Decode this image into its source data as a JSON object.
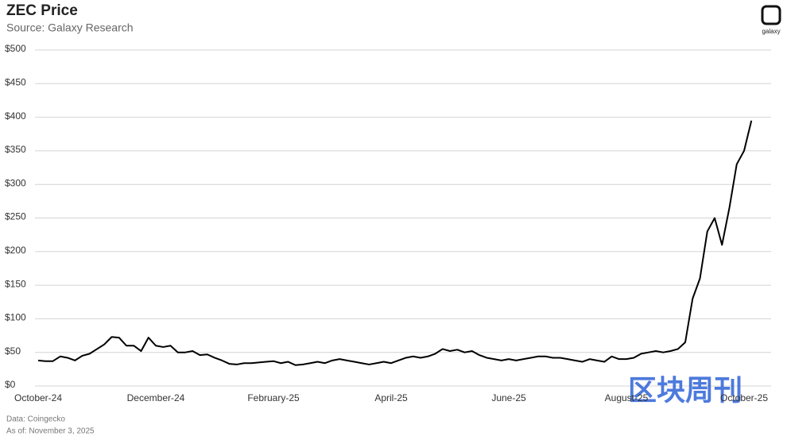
{
  "chart_data": {
    "type": "line",
    "title": "ZEC Price",
    "subtitle": "Source: Galaxy Research",
    "logo": "galaxy",
    "footnotes": [
      "Data: Coingecko",
      "As of: November 3, 2025"
    ],
    "watermark": "区块周刊",
    "grid": true,
    "categories": [
      "October-24",
      null,
      null,
      null,
      null,
      null,
      null,
      null,
      null,
      null,
      null,
      null,
      null,
      null,
      null,
      null,
      "December-24",
      null,
      null,
      null,
      null,
      null,
      null,
      null,
      null,
      null,
      null,
      null,
      null,
      null,
      null,
      null,
      "February-25",
      null,
      null,
      null,
      null,
      null,
      null,
      null,
      null,
      null,
      null,
      null,
      null,
      null,
      null,
      null,
      "April-25",
      null,
      null,
      null,
      null,
      null,
      null,
      null,
      null,
      null,
      null,
      null,
      null,
      null,
      null,
      null,
      "June-25",
      null,
      null,
      null,
      null,
      null,
      null,
      null,
      null,
      null,
      null,
      null,
      null,
      null,
      null,
      null,
      "August-25",
      null,
      null,
      null,
      null,
      null,
      null,
      null,
      null,
      null,
      null,
      null,
      null,
      null,
      null,
      null,
      "October-25",
      null
    ],
    "series": [
      {
        "name": "ZEC",
        "color": "#000000",
        "values": [
          38,
          37,
          37,
          44,
          42,
          38,
          45,
          48,
          55,
          62,
          73,
          72,
          60,
          60,
          52,
          72,
          60,
          58,
          60,
          50,
          50,
          52,
          46,
          47,
          42,
          38,
          33,
          32,
          34,
          34,
          35,
          36,
          37,
          34,
          36,
          31,
          32,
          34,
          36,
          34,
          38,
          40,
          38,
          36,
          34,
          32,
          34,
          36,
          34,
          38,
          42,
          44,
          42,
          44,
          48,
          55,
          52,
          54,
          50,
          52,
          46,
          42,
          40,
          38,
          40,
          38,
          40,
          42,
          44,
          44,
          42,
          42,
          40,
          38,
          36,
          40,
          38,
          36,
          44,
          40,
          40,
          42,
          48,
          50,
          52,
          50,
          52,
          55,
          65,
          130,
          160,
          230,
          250,
          210,
          265,
          330,
          350,
          395
        ]
      }
    ],
    "ylim": [
      0,
      500
    ],
    "yticks": [
      {
        "value": 0,
        "label": "$0"
      },
      {
        "value": 50,
        "label": "$50"
      },
      {
        "value": 100,
        "label": "$100"
      },
      {
        "value": 150,
        "label": "$150"
      },
      {
        "value": 200,
        "label": "$200"
      },
      {
        "value": 250,
        "label": "$250"
      },
      {
        "value": 300,
        "label": "$300"
      },
      {
        "value": 350,
        "label": "$350"
      },
      {
        "value": 400,
        "label": "$400"
      },
      {
        "value": 450,
        "label": "$450"
      },
      {
        "value": 500,
        "label": "$500"
      }
    ]
  }
}
